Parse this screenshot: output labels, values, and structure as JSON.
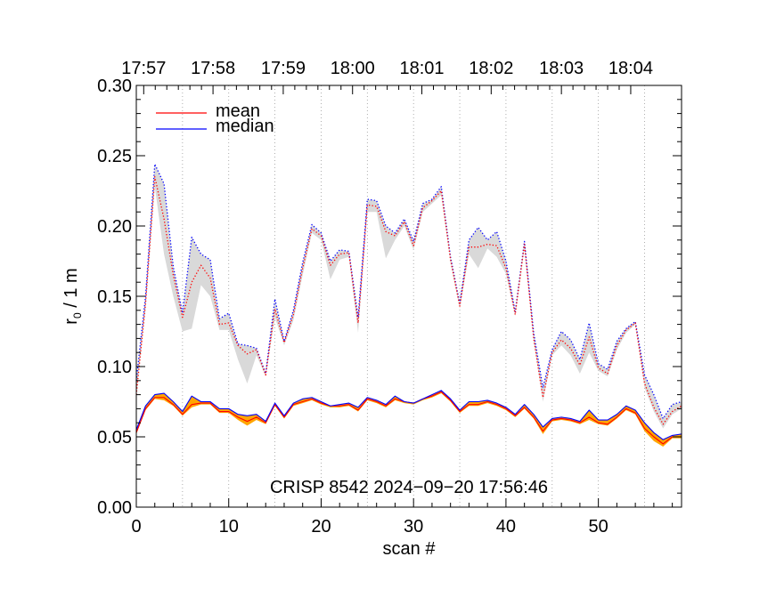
{
  "chart_data": {
    "type": "line",
    "xlabel": "scan #",
    "ylabel_main": "r",
    "ylabel_sub": "0",
    "ylabel_rest": " / 1 m",
    "xlim": [
      0,
      59
    ],
    "ylim": [
      0,
      0.3
    ],
    "x_ticks": [
      0,
      10,
      20,
      30,
      40,
      50
    ],
    "x_tick_labels": [
      "0",
      "10",
      "20",
      "30",
      "40",
      "50"
    ],
    "y_ticks": [
      0.0,
      0.05,
      0.1,
      0.15,
      0.2,
      0.25,
      0.3
    ],
    "y_tick_labels": [
      "0.00",
      "0.05",
      "0.10",
      "0.15",
      "0.20",
      "0.25",
      "0.30"
    ],
    "top_ticks": [
      {
        "scan": 0.8,
        "label": "17:57"
      },
      {
        "scan": 8.3,
        "label": "17:58"
      },
      {
        "scan": 15.9,
        "label": "17:59"
      },
      {
        "scan": 23.4,
        "label": "18:00"
      },
      {
        "scan": 30.9,
        "label": "18:01"
      },
      {
        "scan": 38.4,
        "label": "18:02"
      },
      {
        "scan": 46.0,
        "label": "18:03"
      },
      {
        "scan": 53.5,
        "label": "18:04"
      }
    ],
    "annotation": "CRISP 8542 2024−09−20 17:56:46",
    "legend": [
      {
        "label": "mean",
        "color": "#ff0000"
      },
      {
        "label": "median",
        "color": "#0000ff"
      }
    ],
    "colors": {
      "mean": "#ff0000",
      "median": "#0000ff",
      "band_low": "#ffa500",
      "band_high": "#d9d9d9",
      "grid": "#9a9a9a"
    },
    "series": [
      {
        "name": "mean (low)",
        "style": "solid",
        "values": [
          0.053,
          0.07,
          0.078,
          0.078,
          0.073,
          0.066,
          0.073,
          0.074,
          0.074,
          0.068,
          0.068,
          0.064,
          0.061,
          0.064,
          0.06,
          0.073,
          0.064,
          0.073,
          0.075,
          0.077,
          0.074,
          0.072,
          0.072,
          0.073,
          0.069,
          0.077,
          0.075,
          0.072,
          0.077,
          0.075,
          0.074,
          0.077,
          0.079,
          0.082,
          0.076,
          0.068,
          0.073,
          0.073,
          0.075,
          0.073,
          0.07,
          0.065,
          0.071,
          0.064,
          0.054,
          0.062,
          0.063,
          0.062,
          0.06,
          0.064,
          0.06,
          0.059,
          0.064,
          0.07,
          0.067,
          0.056,
          0.05,
          0.045,
          0.05,
          0.05
        ]
      },
      {
        "name": "median (low)",
        "style": "solid",
        "values": [
          0.055,
          0.072,
          0.08,
          0.081,
          0.075,
          0.068,
          0.079,
          0.075,
          0.075,
          0.07,
          0.07,
          0.066,
          0.065,
          0.066,
          0.061,
          0.074,
          0.065,
          0.074,
          0.077,
          0.078,
          0.075,
          0.072,
          0.073,
          0.074,
          0.071,
          0.078,
          0.076,
          0.073,
          0.079,
          0.075,
          0.074,
          0.077,
          0.08,
          0.083,
          0.077,
          0.069,
          0.075,
          0.075,
          0.076,
          0.074,
          0.071,
          0.066,
          0.073,
          0.066,
          0.057,
          0.063,
          0.064,
          0.063,
          0.061,
          0.069,
          0.062,
          0.062,
          0.066,
          0.072,
          0.069,
          0.06,
          0.053,
          0.048,
          0.051,
          0.052
        ]
      },
      {
        "name": "mean (high)",
        "style": "dotted",
        "values": [
          0.08,
          0.145,
          0.235,
          0.205,
          0.165,
          0.135,
          0.16,
          0.172,
          0.163,
          0.13,
          0.131,
          0.115,
          0.109,
          0.112,
          0.094,
          0.141,
          0.117,
          0.137,
          0.17,
          0.198,
          0.193,
          0.172,
          0.18,
          0.181,
          0.131,
          0.215,
          0.214,
          0.196,
          0.193,
          0.203,
          0.186,
          0.213,
          0.218,
          0.225,
          0.176,
          0.143,
          0.185,
          0.185,
          0.187,
          0.186,
          0.17,
          0.137,
          0.187,
          0.12,
          0.078,
          0.11,
          0.119,
          0.113,
          0.101,
          0.121,
          0.099,
          0.095,
          0.115,
          0.126,
          0.131,
          0.088,
          0.071,
          0.059,
          0.068,
          0.072
        ]
      },
      {
        "name": "median (high)",
        "style": "dotted",
        "values": [
          0.09,
          0.15,
          0.244,
          0.23,
          0.171,
          0.138,
          0.192,
          0.18,
          0.176,
          0.134,
          0.138,
          0.116,
          0.115,
          0.113,
          0.095,
          0.148,
          0.118,
          0.14,
          0.174,
          0.201,
          0.195,
          0.175,
          0.183,
          0.182,
          0.135,
          0.219,
          0.218,
          0.2,
          0.195,
          0.205,
          0.189,
          0.216,
          0.219,
          0.228,
          0.178,
          0.145,
          0.19,
          0.199,
          0.19,
          0.196,
          0.175,
          0.139,
          0.189,
          0.124,
          0.085,
          0.112,
          0.125,
          0.119,
          0.105,
          0.131,
          0.102,
          0.098,
          0.118,
          0.127,
          0.132,
          0.094,
          0.08,
          0.063,
          0.073,
          0.075
        ]
      },
      {
        "name": "band low min",
        "style": "band",
        "values": [
          0.052,
          0.069,
          0.077,
          0.076,
          0.072,
          0.065,
          0.071,
          0.073,
          0.073,
          0.067,
          0.067,
          0.062,
          0.058,
          0.062,
          0.059,
          0.072,
          0.063,
          0.072,
          0.074,
          0.076,
          0.073,
          0.071,
          0.071,
          0.072,
          0.068,
          0.076,
          0.074,
          0.071,
          0.076,
          0.074,
          0.073,
          0.076,
          0.078,
          0.081,
          0.075,
          0.067,
          0.072,
          0.072,
          0.074,
          0.072,
          0.069,
          0.064,
          0.07,
          0.063,
          0.052,
          0.061,
          0.062,
          0.061,
          0.059,
          0.062,
          0.059,
          0.058,
          0.063,
          0.069,
          0.066,
          0.054,
          0.047,
          0.043,
          0.049,
          0.049
        ]
      },
      {
        "name": "band low max",
        "style": "band",
        "values": [
          0.055,
          0.072,
          0.08,
          0.081,
          0.075,
          0.068,
          0.079,
          0.075,
          0.075,
          0.07,
          0.07,
          0.066,
          0.065,
          0.066,
          0.061,
          0.074,
          0.065,
          0.074,
          0.077,
          0.078,
          0.075,
          0.072,
          0.073,
          0.074,
          0.071,
          0.078,
          0.076,
          0.073,
          0.079,
          0.075,
          0.074,
          0.077,
          0.08,
          0.083,
          0.077,
          0.069,
          0.075,
          0.075,
          0.076,
          0.074,
          0.071,
          0.066,
          0.073,
          0.066,
          0.057,
          0.063,
          0.064,
          0.063,
          0.061,
          0.069,
          0.062,
          0.062,
          0.066,
          0.072,
          0.069,
          0.06,
          0.053,
          0.048,
          0.051,
          0.052
        ]
      },
      {
        "name": "band high min",
        "style": "band",
        "values": [
          0.08,
          0.14,
          0.228,
          0.18,
          0.15,
          0.125,
          0.127,
          0.158,
          0.15,
          0.126,
          0.126,
          0.105,
          0.088,
          0.108,
          0.093,
          0.135,
          0.115,
          0.133,
          0.165,
          0.195,
          0.19,
          0.162,
          0.176,
          0.178,
          0.124,
          0.21,
          0.21,
          0.177,
          0.19,
          0.2,
          0.183,
          0.21,
          0.216,
          0.222,
          0.174,
          0.141,
          0.18,
          0.17,
          0.184,
          0.178,
          0.166,
          0.136,
          0.184,
          0.118,
          0.075,
          0.108,
          0.115,
          0.108,
          0.095,
          0.11,
          0.097,
          0.093,
          0.112,
          0.124,
          0.13,
          0.085,
          0.068,
          0.056,
          0.066,
          0.07
        ]
      },
      {
        "name": "band high max",
        "style": "band",
        "values": [
          0.09,
          0.15,
          0.244,
          0.23,
          0.171,
          0.138,
          0.192,
          0.18,
          0.176,
          0.134,
          0.138,
          0.116,
          0.115,
          0.113,
          0.095,
          0.148,
          0.118,
          0.14,
          0.174,
          0.201,
          0.195,
          0.175,
          0.183,
          0.182,
          0.135,
          0.219,
          0.218,
          0.2,
          0.195,
          0.205,
          0.189,
          0.216,
          0.219,
          0.228,
          0.178,
          0.145,
          0.19,
          0.199,
          0.19,
          0.196,
          0.175,
          0.139,
          0.189,
          0.124,
          0.085,
          0.112,
          0.125,
          0.119,
          0.105,
          0.131,
          0.102,
          0.098,
          0.118,
          0.127,
          0.132,
          0.094,
          0.08,
          0.063,
          0.073,
          0.075
        ]
      }
    ]
  }
}
